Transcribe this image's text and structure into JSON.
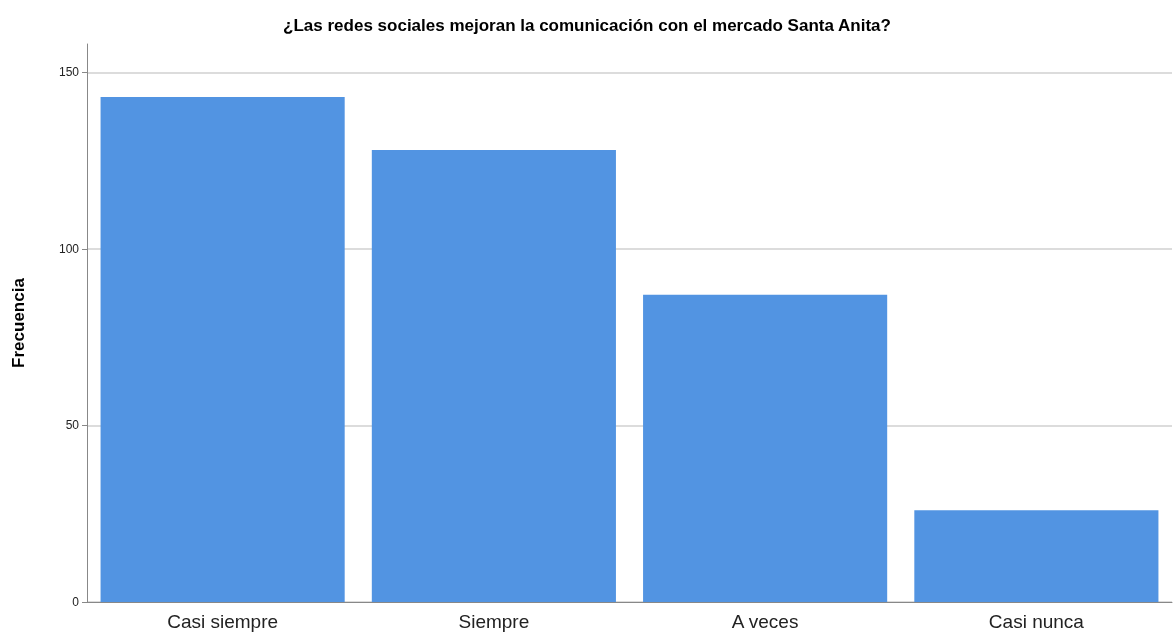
{
  "chart_data": {
    "type": "bar",
    "title": "¿Las redes sociales mejoran la comunicación con el mercado Santa Anita?",
    "ylabel": "Frecuencia",
    "categories": [
      "Casi siempre",
      "Siempre",
      "A veces",
      "Casi nunca"
    ],
    "values": [
      143,
      128,
      87,
      26
    ],
    "color": "#5294e2",
    "ylim": [
      0,
      158
    ],
    "yticks": [
      0,
      50,
      100,
      150
    ],
    "grid": "y"
  }
}
